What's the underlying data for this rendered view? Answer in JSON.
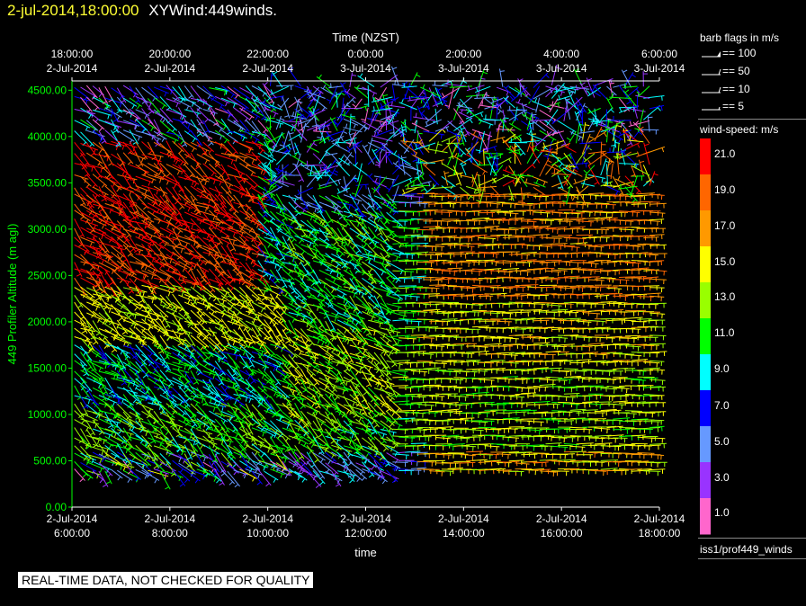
{
  "header": {
    "datetime": "2-jul-2014,18:00:00",
    "title": "XYWind:449winds."
  },
  "notice": "REAL-TIME DATA, NOT CHECKED FOR QUALITY",
  "chart_data": {
    "type": "scatter",
    "subtype": "wind-barb time-height plot",
    "top_axis": {
      "label": "Time (NZST)",
      "ticks": [
        {
          "time": "18:00:00",
          "date": "2-Jul-2014"
        },
        {
          "time": "20:00:00",
          "date": "2-Jul-2014"
        },
        {
          "time": "22:00:00",
          "date": "2-Jul-2014"
        },
        {
          "time": "0:00:00",
          "date": "3-Jul-2014"
        },
        {
          "time": "2:00:00",
          "date": "3-Jul-2014"
        },
        {
          "time": "4:00:00",
          "date": "3-Jul-2014"
        },
        {
          "time": "6:00:00",
          "date": "3-Jul-2014"
        }
      ]
    },
    "bottom_axis": {
      "label": "time",
      "ticks": [
        {
          "date": "2-Jul-2014",
          "time": "6:00:00"
        },
        {
          "date": "2-Jul-2014",
          "time": "8:00:00"
        },
        {
          "date": "2-Jul-2014",
          "time": "10:00:00"
        },
        {
          "date": "2-Jul-2014",
          "time": "12:00:00"
        },
        {
          "date": "2-Jul-2014",
          "time": "14:00:00"
        },
        {
          "date": "2-Jul-2014",
          "time": "16:00:00"
        },
        {
          "date": "2-Jul-2014",
          "time": "18:00:00"
        }
      ],
      "range_hours": [
        6,
        18
      ]
    },
    "y_axis": {
      "label": "449 Profiler Altitude (m agl)",
      "ticks": [
        "0.00",
        "500.00",
        "1000.00",
        "1500.00",
        "2000.00",
        "2500.00",
        "3000.00",
        "3500.00",
        "4000.00",
        "4500.00"
      ],
      "range": [
        0,
        4600
      ]
    },
    "barb_flags": {
      "title": "barb flags in m/s",
      "entries": [
        "== 100",
        "== 50",
        "== 10",
        "== 5"
      ]
    },
    "speed_legend": {
      "title": "wind-speed: m/s",
      "labels": [
        "21.0",
        "19.0",
        "17.0",
        "15.0",
        "13.0",
        "11.0",
        "9.0",
        "7.0",
        "5.0",
        "3.0",
        "1.0"
      ],
      "colors": [
        "#ff0000",
        "#ff6600",
        "#ff9900",
        "#ffff00",
        "#99ff00",
        "#00ff00",
        "#00ffff",
        "#0000ff",
        "#6699ff",
        "#9933ff",
        "#ff66cc"
      ]
    },
    "source": "iss1/prof449_winds"
  }
}
